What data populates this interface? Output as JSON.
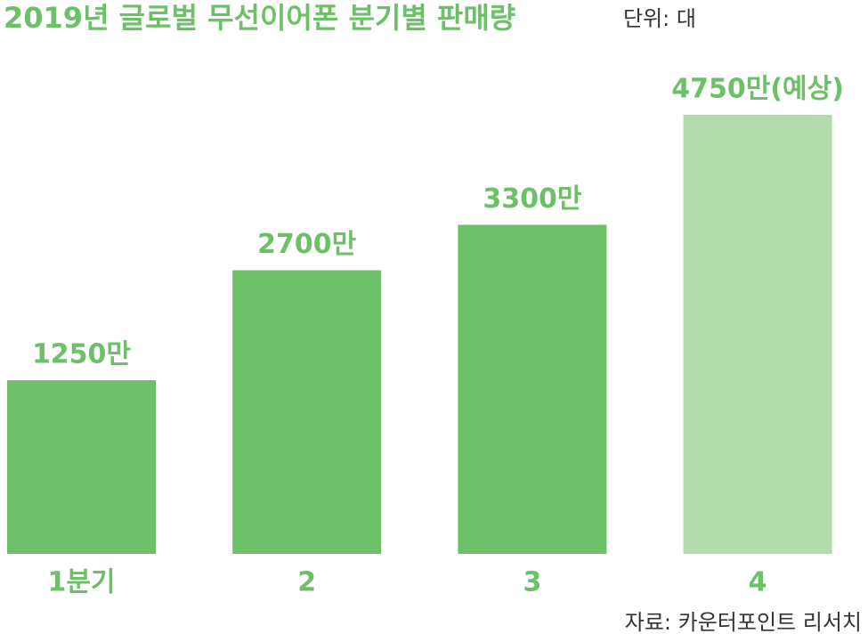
{
  "chart_data": {
    "type": "bar",
    "title": "2019년 글로벌 무선이어폰 분기별 판매량",
    "subtitle": "단위: 대",
    "categories": [
      "1분기",
      "2",
      "3",
      "4"
    ],
    "values": [
      1250,
      2700,
      3300,
      4750
    ],
    "value_labels": [
      "1250만",
      "2700만",
      "3300만",
      "4750만(예상)"
    ],
    "colors": [
      "#6cc067",
      "#6cc067",
      "#6cc067",
      "#b3dbab"
    ],
    "ylim": [
      -1040,
      5560
    ],
    "source": "자료: 카운터포인트 리서치"
  }
}
